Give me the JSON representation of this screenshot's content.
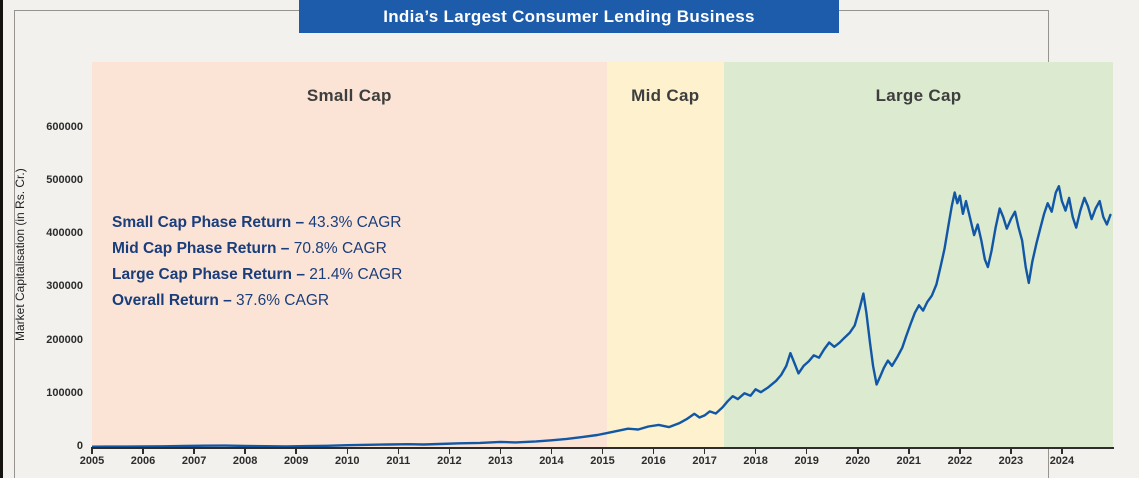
{
  "page": {
    "banner": "India’s Largest Consumer Lending Business"
  },
  "chart_data": {
    "type": "line",
    "title": "India’s Largest Consumer Lending Business",
    "xlabel": "",
    "ylabel": "Market Capitalisation (in Rs. Cr.)",
    "xlim": [
      2005,
      2025
    ],
    "ylim": [
      0,
      724000
    ],
    "x_ticks": [
      2005,
      2006,
      2007,
      2008,
      2009,
      2010,
      2011,
      2012,
      2013,
      2014,
      2015,
      2016,
      2017,
      2018,
      2019,
      2020,
      2021,
      2022,
      2023,
      2024
    ],
    "y_ticks": [
      0,
      100000,
      200000,
      300000,
      400000,
      500000,
      600000
    ],
    "grid": false,
    "legend": "none",
    "line_color": "#1257a6",
    "phases": [
      {
        "label": "Small Cap",
        "start": 2005,
        "end": 2015.08,
        "color": "#fbe4d5"
      },
      {
        "label": "Mid Cap",
        "start": 2015.08,
        "end": 2017.38,
        "color": "#fdf2cd"
      },
      {
        "label": "Large Cap",
        "start": 2017.38,
        "end": 2025,
        "color": "#dcead0"
      }
    ],
    "returns": [
      {
        "label": "Small Cap Phase Return –",
        "value": "43.3% CAGR"
      },
      {
        "label": "Mid Cap Phase Return –",
        "value": "70.8% CAGR"
      },
      {
        "label": "Large Cap Phase Return –",
        "value": "21.4% CAGR"
      },
      {
        "label": "Overall Return –",
        "value": "37.6% CAGR"
      }
    ],
    "series": [
      {
        "name": "Market Capitalisation (in Rs. Cr.)",
        "points": [
          [
            2005.0,
            600
          ],
          [
            2005.3,
            700
          ],
          [
            2005.6,
            800
          ],
          [
            2006.0,
            1100
          ],
          [
            2006.4,
            1300
          ],
          [
            2006.8,
            1800
          ],
          [
            2007.2,
            2400
          ],
          [
            2007.6,
            2700
          ],
          [
            2008.0,
            2100
          ],
          [
            2008.4,
            1500
          ],
          [
            2008.8,
            1200
          ],
          [
            2009.2,
            1600
          ],
          [
            2009.6,
            2300
          ],
          [
            2010.0,
            3300
          ],
          [
            2010.4,
            4100
          ],
          [
            2010.8,
            4700
          ],
          [
            2011.2,
            5200
          ],
          [
            2011.5,
            4700
          ],
          [
            2011.8,
            5600
          ],
          [
            2012.2,
            6900
          ],
          [
            2012.6,
            7800
          ],
          [
            2013.0,
            9500
          ],
          [
            2013.3,
            8700
          ],
          [
            2013.7,
            10600
          ],
          [
            2014.0,
            12600
          ],
          [
            2014.3,
            15200
          ],
          [
            2014.6,
            18600
          ],
          [
            2014.9,
            22600
          ],
          [
            2015.1,
            26500
          ],
          [
            2015.3,
            30500
          ],
          [
            2015.5,
            34500
          ],
          [
            2015.7,
            33000
          ],
          [
            2015.9,
            38500
          ],
          [
            2016.1,
            41500
          ],
          [
            2016.3,
            37500
          ],
          [
            2016.5,
            44500
          ],
          [
            2016.65,
            52500
          ],
          [
            2016.8,
            62500
          ],
          [
            2016.9,
            55500
          ],
          [
            2017.0,
            59500
          ],
          [
            2017.1,
            67000
          ],
          [
            2017.22,
            63000
          ],
          [
            2017.35,
            74500
          ],
          [
            2017.45,
            86000
          ],
          [
            2017.55,
            95500
          ],
          [
            2017.65,
            90000
          ],
          [
            2017.78,
            101000
          ],
          [
            2017.9,
            96500
          ],
          [
            2018.0,
            108500
          ],
          [
            2018.1,
            103000
          ],
          [
            2018.25,
            112500
          ],
          [
            2018.4,
            124500
          ],
          [
            2018.5,
            135500
          ],
          [
            2018.6,
            152500
          ],
          [
            2018.68,
            176500
          ],
          [
            2018.76,
            158000
          ],
          [
            2018.84,
            138500
          ],
          [
            2018.94,
            152500
          ],
          [
            2019.04,
            161000
          ],
          [
            2019.14,
            172500
          ],
          [
            2019.24,
            168000
          ],
          [
            2019.34,
            183500
          ],
          [
            2019.44,
            196500
          ],
          [
            2019.54,
            188500
          ],
          [
            2019.64,
            196000
          ],
          [
            2019.74,
            205500
          ],
          [
            2019.84,
            214500
          ],
          [
            2019.94,
            228500
          ],
          [
            2020.04,
            262000
          ],
          [
            2020.11,
            288500
          ],
          [
            2020.17,
            252000
          ],
          [
            2020.24,
            196000
          ],
          [
            2020.3,
            152000
          ],
          [
            2020.37,
            117500
          ],
          [
            2020.44,
            132500
          ],
          [
            2020.51,
            148500
          ],
          [
            2020.59,
            162500
          ],
          [
            2020.67,
            152500
          ],
          [
            2020.77,
            168500
          ],
          [
            2020.87,
            186500
          ],
          [
            2020.95,
            208500
          ],
          [
            2021.04,
            232500
          ],
          [
            2021.12,
            252500
          ],
          [
            2021.2,
            266500
          ],
          [
            2021.28,
            256500
          ],
          [
            2021.36,
            272500
          ],
          [
            2021.45,
            284500
          ],
          [
            2021.54,
            305500
          ],
          [
            2021.62,
            338500
          ],
          [
            2021.7,
            372500
          ],
          [
            2021.78,
            418500
          ],
          [
            2021.84,
            452500
          ],
          [
            2021.9,
            478500
          ],
          [
            2021.95,
            458500
          ],
          [
            2022.0,
            472500
          ],
          [
            2022.06,
            438500
          ],
          [
            2022.12,
            462500
          ],
          [
            2022.2,
            430500
          ],
          [
            2022.28,
            398500
          ],
          [
            2022.35,
            418500
          ],
          [
            2022.42,
            388500
          ],
          [
            2022.49,
            352500
          ],
          [
            2022.55,
            338500
          ],
          [
            2022.62,
            368500
          ],
          [
            2022.7,
            412500
          ],
          [
            2022.78,
            448500
          ],
          [
            2022.85,
            432500
          ],
          [
            2022.92,
            410500
          ],
          [
            2023.0,
            428500
          ],
          [
            2023.08,
            442500
          ],
          [
            2023.15,
            412500
          ],
          [
            2023.22,
            388500
          ],
          [
            2023.29,
            338500
          ],
          [
            2023.35,
            308500
          ],
          [
            2023.42,
            348500
          ],
          [
            2023.5,
            382500
          ],
          [
            2023.58,
            412500
          ],
          [
            2023.65,
            438500
          ],
          [
            2023.72,
            458500
          ],
          [
            2023.8,
            442500
          ],
          [
            2023.88,
            478500
          ],
          [
            2023.94,
            490500
          ],
          [
            2024.0,
            462500
          ],
          [
            2024.07,
            444500
          ],
          [
            2024.14,
            468500
          ],
          [
            2024.21,
            432500
          ],
          [
            2024.28,
            412500
          ],
          [
            2024.36,
            444500
          ],
          [
            2024.44,
            468500
          ],
          [
            2024.51,
            452500
          ],
          [
            2024.58,
            428500
          ],
          [
            2024.66,
            448500
          ],
          [
            2024.74,
            462500
          ],
          [
            2024.81,
            432500
          ],
          [
            2024.88,
            418500
          ],
          [
            2024.95,
            436500
          ]
        ]
      }
    ]
  }
}
